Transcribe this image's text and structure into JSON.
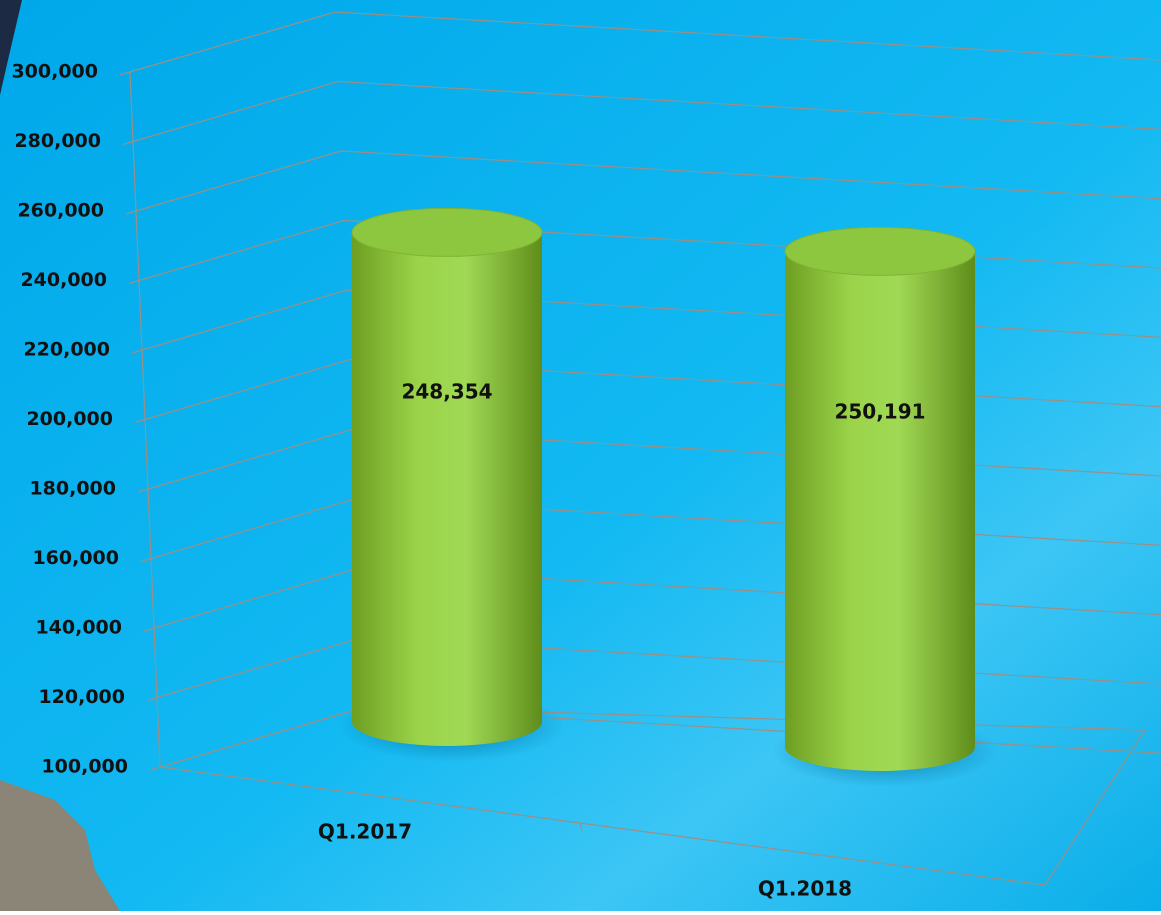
{
  "chart_data": {
    "type": "bar3d-cylinder",
    "categories": [
      "Q1.2017",
      "Q1.2018"
    ],
    "values": [
      248354,
      250191
    ],
    "value_labels": [
      "248,354",
      "250,191"
    ],
    "color": "#8dc63f",
    "ylim": [
      100000,
      300000
    ],
    "yticks": [
      {
        "value": 100000,
        "label": "100,000"
      },
      {
        "value": 120000,
        "label": "120,000"
      },
      {
        "value": 140000,
        "label": "140,000"
      },
      {
        "value": 160000,
        "label": "160,000"
      },
      {
        "value": 180000,
        "label": "180,000"
      },
      {
        "value": 200000,
        "label": "200,000"
      },
      {
        "value": 220000,
        "label": "220,000"
      },
      {
        "value": 240000,
        "label": "240,000"
      },
      {
        "value": 260000,
        "label": "260,000"
      },
      {
        "value": 280000,
        "label": "280,000"
      },
      {
        "value": 300000,
        "label": "300,000"
      }
    ],
    "grid": true
  }
}
